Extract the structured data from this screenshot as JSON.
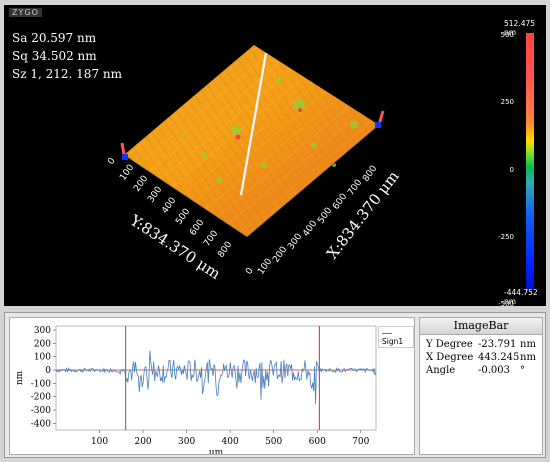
{
  "viewer": {
    "logo_text": "ZYGO",
    "stats": [
      {
        "label": "Sa",
        "value": "20.597 nm"
      },
      {
        "label": "Sq",
        "value": "34.502 nm"
      },
      {
        "label": "Sz",
        "value": "1, 212. 187  nm"
      }
    ],
    "x_axis_label": "X:834.370 μm",
    "y_axis_label": "Y:834.370 μm",
    "x_ticks": [
      "0",
      "100",
      "200",
      "300",
      "400",
      "500",
      "600",
      "700",
      "800"
    ],
    "y_ticks": [
      "0",
      "100",
      "200",
      "300",
      "400",
      "500",
      "600",
      "700",
      "800"
    ]
  },
  "colorbar": {
    "max_label": "512.475 nm",
    "min_label": "-444.752 nm",
    "ticks": [
      "500",
      "250",
      "0",
      "-250",
      "-500"
    ],
    "ticks_values": [
      500,
      250,
      0,
      -250,
      -500
    ],
    "range": [
      -444.752,
      512.475
    ]
  },
  "profile": {
    "legend": "Sign1",
    "y_axis_title": "nm",
    "x_axis_title": "μm",
    "y_ticks": [
      "300",
      "200",
      "100",
      "0",
      "-100",
      "-200",
      "-300",
      "-400"
    ],
    "y_tick_values": [
      300,
      200,
      100,
      0,
      -100,
      -200,
      -300,
      -400
    ],
    "x_ticks": [
      "100",
      "200",
      "300",
      "400",
      "500",
      "600",
      "700"
    ],
    "x_tick_values": [
      100,
      200,
      300,
      400,
      500,
      600,
      700
    ],
    "cursor_left_x": 160,
    "cursor_right_x": 605,
    "series_color": "#4a7dbb"
  },
  "imagebar": {
    "title": "ImageBar",
    "rows": [
      {
        "label": "Y Degree",
        "value": "-23.791",
        "unit": "nm"
      },
      {
        "label": "X Degree",
        "value": "443.245",
        "unit": "nm"
      },
      {
        "label": "Angle",
        "value": "-0.003",
        "unit": "°"
      }
    ]
  }
}
